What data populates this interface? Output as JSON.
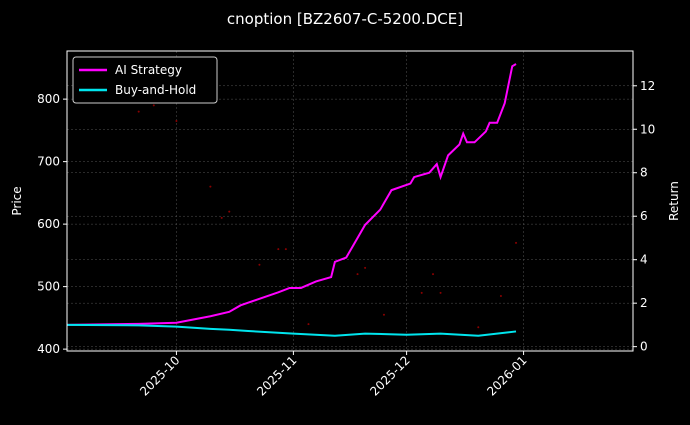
{
  "chart_data": {
    "type": "line",
    "title": "cnoption [BZ2607-C-5200.DCE]",
    "ylabel": "Price",
    "y2label": "Return",
    "xlim": [
      "2025-09-02",
      "2026-01-30"
    ],
    "ylim": [
      397,
      877
    ],
    "y2lim": [
      -0.2,
      13.6
    ],
    "xticks": [
      "2025-10",
      "2025-11",
      "2025-12",
      "2026-01"
    ],
    "xtick_dates": [
      "2025-10-01",
      "2025-11-01",
      "2025-12-01",
      "2026-01-01"
    ],
    "yticks": [
      400,
      500,
      600,
      700,
      800
    ],
    "y2ticks": [
      0,
      2,
      4,
      6,
      8,
      10,
      12
    ],
    "grid": true,
    "legend_placement": "top-left",
    "series": [
      {
        "name": "AI Strategy",
        "color": "#ff00ff",
        "axis": "right",
        "x": [
          "2025-09-02",
          "2025-09-21",
          "2025-10-01",
          "2025-10-10",
          "2025-10-15",
          "2025-10-18",
          "2025-10-23",
          "2025-10-28",
          "2025-10-31",
          "2025-11-03",
          "2025-11-07",
          "2025-11-11",
          "2025-11-12",
          "2025-11-15",
          "2025-11-17",
          "2025-11-20",
          "2025-11-24",
          "2025-11-27",
          "2025-12-02",
          "2025-12-03",
          "2025-12-07",
          "2025-12-09",
          "2025-12-10",
          "2025-12-12",
          "2025-12-15",
          "2025-12-16",
          "2025-12-17",
          "2025-12-19",
          "2025-12-22",
          "2025-12-23",
          "2025-12-25",
          "2025-12-27",
          "2025-12-29",
          "2025-12-30"
        ],
        "y": [
          1.0,
          1.05,
          1.1,
          1.4,
          1.6,
          1.9,
          2.2,
          2.5,
          2.7,
          2.7,
          3.0,
          3.2,
          3.9,
          4.1,
          4.7,
          5.6,
          6.3,
          7.2,
          7.5,
          7.8,
          8.0,
          8.4,
          7.8,
          8.8,
          9.3,
          9.8,
          9.4,
          9.4,
          9.9,
          10.3,
          10.3,
          11.2,
          12.9,
          13.0
        ]
      },
      {
        "name": "Buy-and-Hold",
        "color": "#00e5ee",
        "axis": "right",
        "x": [
          "2025-09-02",
          "2025-09-21",
          "2025-10-01",
          "2025-10-10",
          "2025-10-15",
          "2025-10-20",
          "2025-11-01",
          "2025-11-12",
          "2025-11-20",
          "2025-12-01",
          "2025-12-10",
          "2025-12-20",
          "2025-12-30"
        ],
        "y": [
          1.0,
          0.98,
          0.92,
          0.82,
          0.78,
          0.72,
          0.6,
          0.5,
          0.6,
          0.55,
          0.6,
          0.5,
          0.7
        ]
      },
      {
        "name": "",
        "color": "#8b0000",
        "axis": "left",
        "type": "scatter",
        "x": [
          "2025-09-21",
          "2025-09-25",
          "2025-10-01",
          "2025-10-10",
          "2025-10-13",
          "2025-10-15",
          "2025-10-23",
          "2025-10-28",
          "2025-10-30",
          "2025-11-05",
          "2025-11-18",
          "2025-11-20",
          "2025-11-25",
          "2025-12-05",
          "2025-12-08",
          "2025-12-10",
          "2025-12-20",
          "2025-12-26",
          "2025-12-30"
        ],
        "y": [
          780,
          790,
          765,
          660,
          610,
          620,
          535,
          560,
          560,
          440,
          520,
          530,
          455,
          490,
          520,
          490,
          435,
          485,
          570
        ]
      }
    ]
  }
}
